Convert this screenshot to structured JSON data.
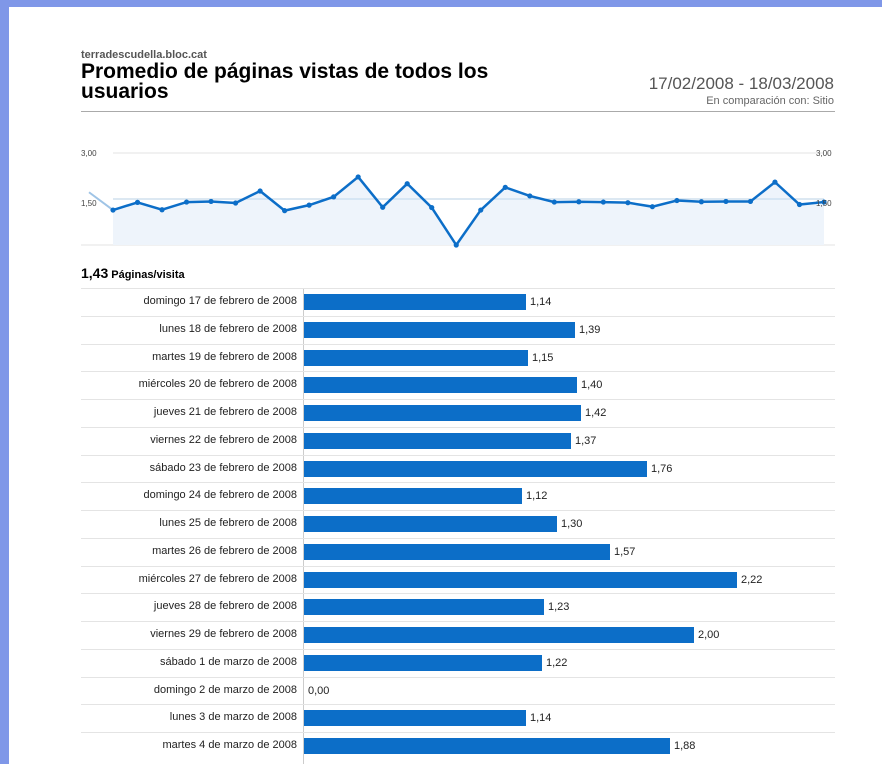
{
  "header": {
    "site": "terradescudella.bloc.cat",
    "title": "Promedio de páginas vistas de todos los usuarios",
    "date_range": "17/02/2008 - 18/03/2008",
    "comparison": "En comparación con: Sitio"
  },
  "summary": {
    "value": "1,43",
    "unit": "Páginas/visita"
  },
  "colors": {
    "accent": "#0c6ec8",
    "area_fill": "#eef4fb",
    "frame": "#7f97e8",
    "comparison_line": "#9fc4e6"
  },
  "chart_data": [
    {
      "type": "line",
      "y_tick_labels": [
        "3,00",
        "1,50"
      ],
      "ylim": [
        0,
        3
      ],
      "comparison_line": true,
      "series": [
        {
          "values": [
            1.14,
            1.39,
            1.15,
            1.4,
            1.42,
            1.37,
            1.76,
            1.12,
            1.3,
            1.57,
            2.22,
            1.23,
            2.0,
            1.22,
            0.0,
            1.14,
            1.88,
            1.6,
            1.4,
            1.41,
            1.4,
            1.38,
            1.25,
            1.45,
            1.41,
            1.42,
            1.42,
            2.05,
            1.32,
            1.4
          ]
        }
      ]
    },
    {
      "type": "bar",
      "orientation": "horizontal",
      "categories": [
        "domingo 17 de febrero de 2008",
        "lunes 18 de febrero de 2008",
        "martes 19 de febrero de 2008",
        "miércoles 20 de febrero de 2008",
        "jueves 21 de febrero de 2008",
        "viernes 22 de febrero de 2008",
        "sábado 23 de febrero de 2008",
        "domingo 24 de febrero de 2008",
        "lunes 25 de febrero de 2008",
        "martes 26 de febrero de 2008",
        "miércoles 27 de febrero de 2008",
        "jueves 28 de febrero de 2008",
        "viernes 29 de febrero de 2008",
        "sábado 1 de marzo de 2008",
        "domingo 2 de marzo de 2008",
        "lunes 3 de marzo de 2008",
        "martes 4 de marzo de 2008"
      ],
      "values": [
        1.14,
        1.39,
        1.15,
        1.4,
        1.42,
        1.37,
        1.76,
        1.12,
        1.3,
        1.57,
        2.22,
        1.23,
        2.0,
        1.22,
        0.0,
        1.14,
        1.88
      ],
      "value_labels": [
        "1,14",
        "1,39",
        "1,15",
        "1,40",
        "1,42",
        "1,37",
        "1,76",
        "1,12",
        "1,30",
        "1,57",
        "2,22",
        "1,23",
        "2,00",
        "1,22",
        "0,00",
        "1,14",
        "1,88"
      ]
    }
  ]
}
